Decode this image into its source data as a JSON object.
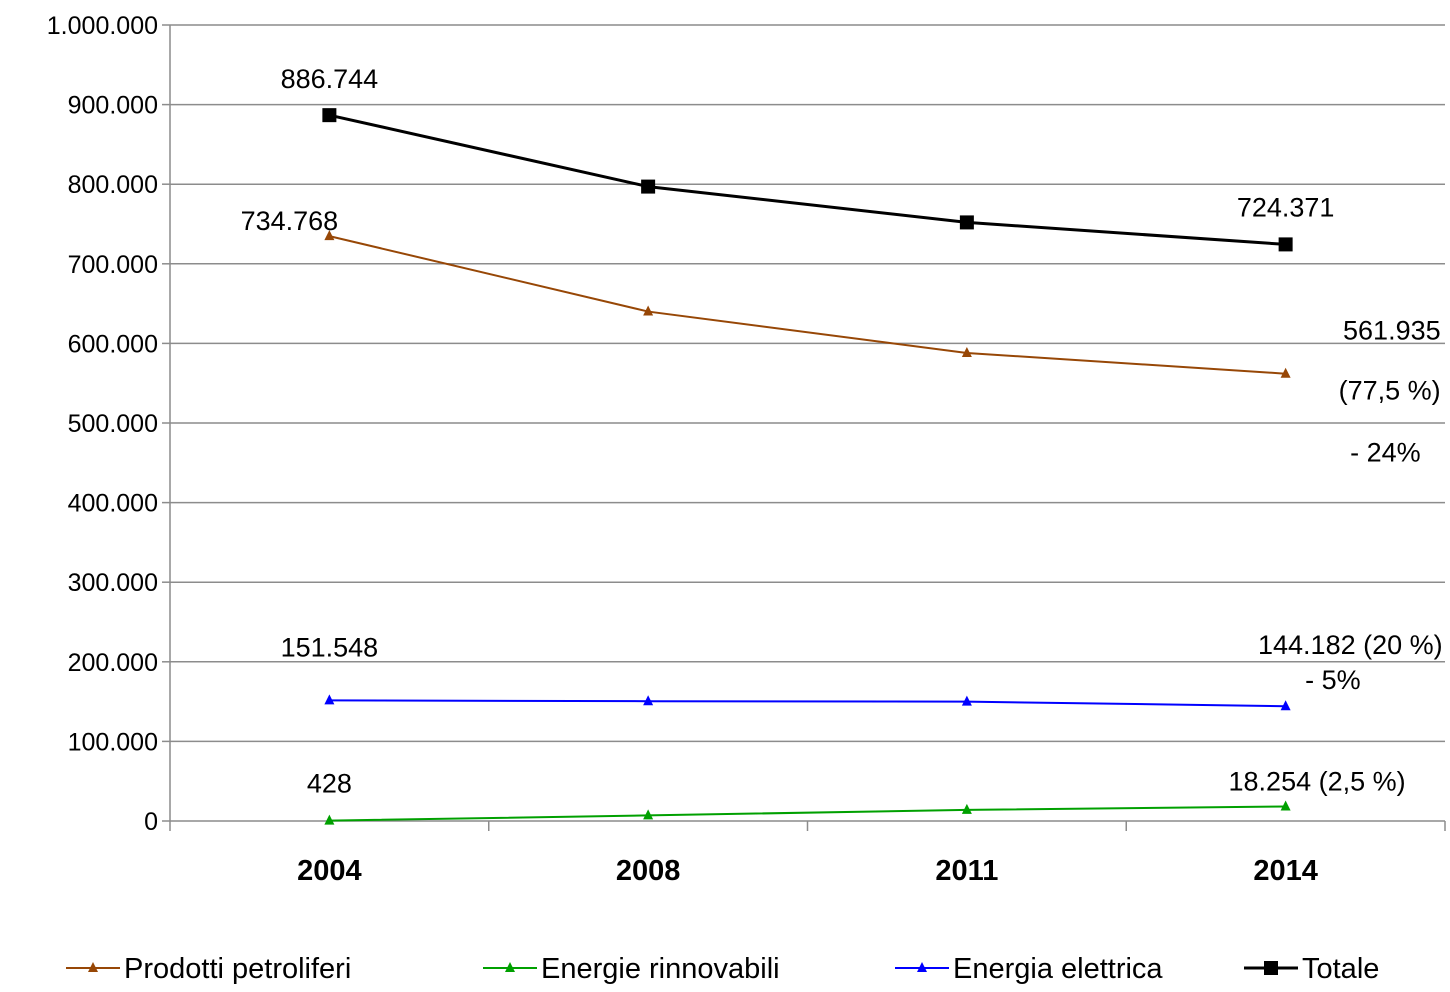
{
  "chart_data": {
    "type": "line",
    "categories": [
      "2004",
      "2008",
      "2011",
      "2014"
    ],
    "ylim": [
      0,
      1000000
    ],
    "y_ticks": [
      0,
      100000,
      200000,
      300000,
      400000,
      500000,
      600000,
      700000,
      800000,
      900000,
      1000000
    ],
    "y_tick_labels": [
      "0",
      "100.000",
      "200.000",
      "300.000",
      "400.000",
      "500.000",
      "600.000",
      "700.000",
      "800.000",
      "900.000",
      "1.000.000"
    ],
    "grid": "horizontal",
    "legend_position": "bottom",
    "series": [
      {
        "name": "Prodotti petroliferi",
        "color": "#974706",
        "marker": "triangle",
        "values": [
          734768,
          640000,
          588000,
          561935
        ]
      },
      {
        "name": "Energie rinnovabili",
        "color": "#00A000",
        "marker": "triangle",
        "values": [
          428,
          7000,
          14000,
          18254
        ]
      },
      {
        "name": "Energia elettrica",
        "color": "#0000FF",
        "marker": "triangle",
        "values": [
          151548,
          150500,
          150000,
          144182
        ]
      },
      {
        "name": "Totale",
        "color": "#000000",
        "marker": "square",
        "values": [
          886744,
          797000,
          752000,
          724371
        ]
      }
    ],
    "annotations": [
      {
        "text": "886.744",
        "series": 3,
        "index": 0
      },
      {
        "text": "724.371",
        "series": 3,
        "index": 3
      },
      {
        "text": "734.768",
        "series": 0,
        "index": 0
      },
      {
        "text": "561.935",
        "series": 0,
        "index": 3
      },
      {
        "text": "(77,5 %)",
        "series": 0,
        "index": 3
      },
      {
        "text": "- 24%",
        "series": 0,
        "index": 3
      },
      {
        "text": "151.548",
        "series": 2,
        "index": 0
      },
      {
        "text": "144.182  (20 %)",
        "series": 2,
        "index": 3
      },
      {
        "text": "- 5%",
        "series": 2,
        "index": 3
      },
      {
        "text": "428",
        "series": 1,
        "index": 0
      },
      {
        "text": "18.254  (2,5 %)",
        "series": 1,
        "index": 3
      }
    ]
  }
}
